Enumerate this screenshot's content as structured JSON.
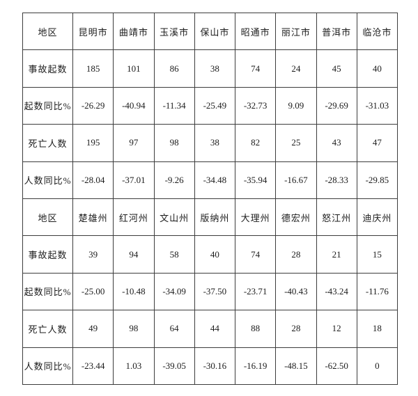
{
  "page": {
    "background_color": "#ffffff",
    "border_color": "#3c3c3c",
    "text_color": "#1c1c1c"
  },
  "table": {
    "sections": [
      {
        "header_label": "地区",
        "regions": [
          "昆明市",
          "曲靖市",
          "玉溪市",
          "保山市",
          "昭通市",
          "丽江市",
          "普洱市",
          "临沧市"
        ],
        "rows": [
          {
            "label": "事故起数",
            "values": [
              "185",
              "101",
              "86",
              "38",
              "74",
              "24",
              "45",
              "40"
            ]
          },
          {
            "label": "起数同比%",
            "values": [
              "-26.29",
              "-40.94",
              "-11.34",
              "-25.49",
              "-32.73",
              "9.09",
              "-29.69",
              "-31.03"
            ]
          },
          {
            "label": "死亡人数",
            "values": [
              "195",
              "97",
              "98",
              "38",
              "82",
              "25",
              "43",
              "47"
            ]
          },
          {
            "label": "人数同比%",
            "values": [
              "-28.04",
              "-37.01",
              "-9.26",
              "-34.48",
              "-35.94",
              "-16.67",
              "-28.33",
              "-29.85"
            ]
          }
        ]
      },
      {
        "header_label": "地区",
        "regions": [
          "楚雄州",
          "红河州",
          "文山州",
          "版纳州",
          "大理州",
          "德宏州",
          "怒江州",
          "迪庆州"
        ],
        "rows": [
          {
            "label": "事故起数",
            "values": [
              "39",
              "94",
              "58",
              "40",
              "74",
              "28",
              "21",
              "15"
            ]
          },
          {
            "label": "起数同比%",
            "values": [
              "-25.00",
              "-10.48",
              "-34.09",
              "-37.50",
              "-23.71",
              "-40.43",
              "-43.24",
              "-11.76"
            ]
          },
          {
            "label": "死亡人数",
            "values": [
              "49",
              "98",
              "64",
              "44",
              "88",
              "28",
              "12",
              "18"
            ]
          },
          {
            "label": "人数同比%",
            "values": [
              "-23.44",
              "1.03",
              "-39.05",
              "-30.16",
              "-16.19",
              "-48.15",
              "-62.50",
              "0"
            ]
          }
        ]
      }
    ]
  }
}
